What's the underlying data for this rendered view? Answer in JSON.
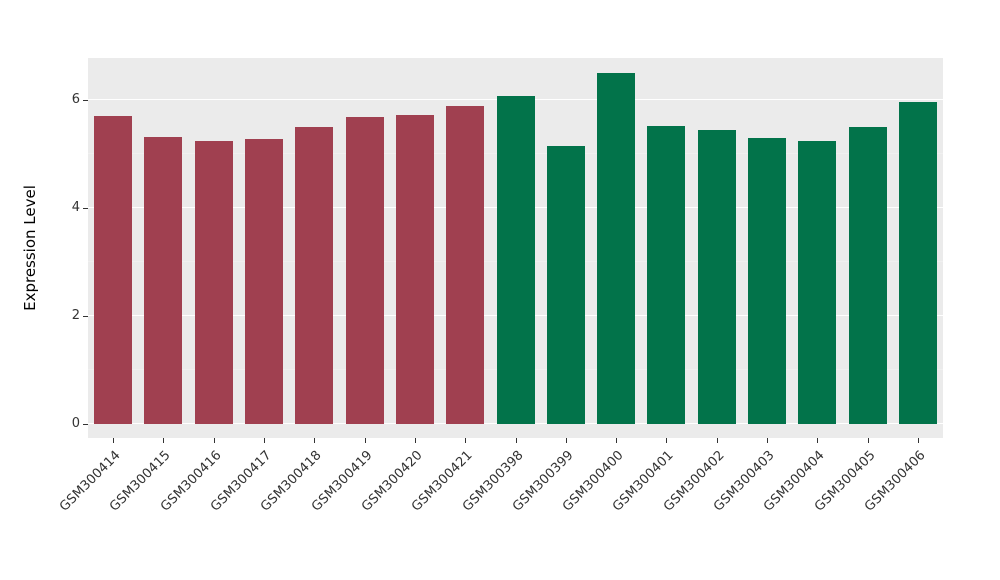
{
  "chart_data": {
    "type": "bar",
    "title": "",
    "xlabel": "",
    "ylabel": "Expression Level",
    "ylim": [
      0,
      6.75
    ],
    "yticks": [
      0,
      2,
      4,
      6
    ],
    "minor_ticks": [
      1,
      3,
      5
    ],
    "grid": "on",
    "legend": "none",
    "panel_bg": "#EBEBEB",
    "grid_color": "#FFFFFF",
    "group_colors": {
      "left_group": "#A04050",
      "right_group": "#02734A"
    },
    "categories": [
      "GSM300414",
      "GSM300415",
      "GSM300416",
      "GSM300417",
      "GSM300418",
      "GSM300419",
      "GSM300420",
      "GSM300421",
      "GSM300398",
      "GSM300399",
      "GSM300400",
      "GSM300401",
      "GSM300402",
      "GSM300403",
      "GSM300404",
      "GSM300405",
      "GSM300406"
    ],
    "values": [
      5.7,
      5.32,
      5.25,
      5.27,
      5.5,
      5.68,
      5.72,
      5.88,
      6.08,
      5.15,
      6.5,
      5.52,
      5.45,
      5.3,
      5.25,
      5.5,
      5.97
    ],
    "bar_colors": [
      "#A04050",
      "#A04050",
      "#A04050",
      "#A04050",
      "#A04050",
      "#A04050",
      "#A04050",
      "#A04050",
      "#02734A",
      "#02734A",
      "#02734A",
      "#02734A",
      "#02734A",
      "#02734A",
      "#02734A",
      "#02734A",
      "#02734A"
    ]
  }
}
